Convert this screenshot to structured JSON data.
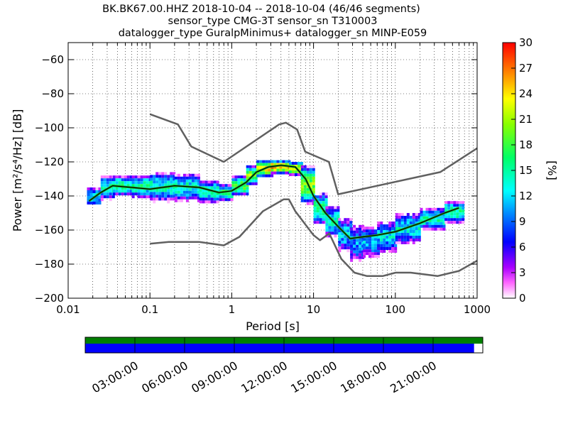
{
  "title": {
    "line1": "BK.BK67.00.HHZ   2018-10-04 -- 2018-10-04  (46/46 segments)",
    "line2": "sensor_type CMG-3T sensor_sn T310003",
    "line3": "datalogger_type GuralpMinimus+ datalogger_sn MINP-E059"
  },
  "colors": {
    "noise_model": "#606060",
    "mean_curve": "#000000",
    "mode_curve": "#22aa22",
    "coverage_top": "#007f00",
    "coverage_bottom": "#0000ff"
  },
  "chart_data": [
    {
      "type": "heatmap",
      "xlabel": "Period [s]",
      "ylabel": "Power [m²/s⁴/Hz] [dB]",
      "xscale": "log",
      "xlim": [
        0.01,
        1000
      ],
      "ylim": [
        -200,
        -50
      ],
      "x_ticks": [
        {
          "v": 0.01,
          "label": "0.01"
        },
        {
          "v": 0.1,
          "label": "0.1"
        },
        {
          "v": 1,
          "label": "1"
        },
        {
          "v": 10,
          "label": "10"
        },
        {
          "v": 100,
          "label": "100"
        },
        {
          "v": 1000,
          "label": "1000"
        }
      ],
      "y_ticks": [
        {
          "v": -60,
          "label": "−60"
        },
        {
          "v": -80,
          "label": "−80"
        },
        {
          "v": -100,
          "label": "−100"
        },
        {
          "v": -120,
          "label": "−120"
        },
        {
          "v": -140,
          "label": "−140"
        },
        {
          "v": -160,
          "label": "−160"
        },
        {
          "v": -180,
          "label": "−180"
        },
        {
          "v": -200,
          "label": "−200"
        }
      ],
      "grid": true,
      "colorbar": {
        "label": "[%]",
        "min": 0,
        "max": 30,
        "ticks": [
          {
            "v": 0,
            "label": "0"
          },
          {
            "v": 3,
            "label": "3"
          },
          {
            "v": 6,
            "label": "6"
          },
          {
            "v": 9,
            "label": "9"
          },
          {
            "v": 12,
            "label": "12"
          },
          {
            "v": 15,
            "label": "15"
          },
          {
            "v": 18,
            "label": "18"
          },
          {
            "v": 21,
            "label": "21"
          },
          {
            "v": 24,
            "label": "24"
          },
          {
            "v": 27,
            "label": "27"
          },
          {
            "v": 30,
            "label": "30"
          }
        ]
      },
      "noise_model_high": [
        [
          0.1,
          -92
        ],
        [
          0.22,
          -98
        ],
        [
          0.32,
          -111
        ],
        [
          0.8,
          -120
        ],
        [
          3.8,
          -98
        ],
        [
          4.6,
          -97
        ],
        [
          6.3,
          -101
        ],
        [
          7.9,
          -114
        ],
        [
          15.4,
          -120
        ],
        [
          20,
          -139
        ],
        [
          354,
          -126
        ],
        [
          1000,
          -112
        ]
      ],
      "noise_model_low": [
        [
          0.1,
          -168
        ],
        [
          0.17,
          -167
        ],
        [
          0.4,
          -167
        ],
        [
          0.8,
          -169
        ],
        [
          1.24,
          -164
        ],
        [
          2.4,
          -149
        ],
        [
          4.3,
          -142
        ],
        [
          5,
          -142
        ],
        [
          6,
          -149
        ],
        [
          10,
          -163
        ],
        [
          12,
          -166
        ],
        [
          15.6,
          -162
        ],
        [
          21.9,
          -177
        ],
        [
          31.6,
          -185
        ],
        [
          45,
          -187
        ],
        [
          70,
          -187
        ],
        [
          101,
          -185
        ],
        [
          154,
          -185
        ],
        [
          328,
          -187
        ],
        [
          600,
          -184
        ],
        [
          1000,
          -178
        ]
      ],
      "mode_curve": [
        [
          0.018,
          -143
        ],
        [
          0.025,
          -138
        ],
        [
          0.035,
          -134
        ],
        [
          0.06,
          -135
        ],
        [
          0.1,
          -136
        ],
        [
          0.2,
          -134
        ],
        [
          0.4,
          -135
        ],
        [
          0.7,
          -138
        ],
        [
          1.0,
          -137
        ],
        [
          1.5,
          -132
        ],
        [
          2.0,
          -126
        ],
        [
          2.8,
          -123
        ],
        [
          4,
          -122
        ],
        [
          6,
          -123
        ],
        [
          8,
          -130
        ],
        [
          10,
          -140
        ],
        [
          14,
          -150
        ],
        [
          20,
          -158
        ],
        [
          28,
          -165
        ],
        [
          40,
          -164
        ],
        [
          60,
          -163
        ],
        [
          100,
          -161
        ],
        [
          200,
          -156
        ],
        [
          400,
          -150
        ],
        [
          600,
          -147
        ]
      ],
      "density_samples": [
        [
          0.017,
          0.025,
          -146,
          -135,
          12
        ],
        [
          0.025,
          0.035,
          -142,
          -128,
          14
        ],
        [
          0.035,
          0.06,
          -140,
          -128,
          16
        ],
        [
          0.06,
          0.1,
          -141,
          -128,
          15
        ],
        [
          0.1,
          0.2,
          -143,
          -126,
          14
        ],
        [
          0.2,
          0.4,
          -143,
          -127,
          14
        ],
        [
          0.4,
          0.7,
          -144,
          -131,
          15
        ],
        [
          0.7,
          1.0,
          -143,
          -133,
          16
        ],
        [
          1.0,
          1.5,
          -140,
          -128,
          18
        ],
        [
          1.5,
          2.0,
          -134,
          -122,
          20
        ],
        [
          2.0,
          3.0,
          -129,
          -119,
          24
        ],
        [
          3.0,
          5.0,
          -127,
          -119,
          26
        ],
        [
          5.0,
          7.0,
          -128,
          -120,
          24
        ],
        [
          7.0,
          10,
          -145,
          -122,
          20
        ],
        [
          10,
          14,
          -157,
          -138,
          16
        ],
        [
          14,
          20,
          -164,
          -146,
          14
        ],
        [
          20,
          28,
          -172,
          -153,
          12
        ],
        [
          28,
          40,
          -178,
          -157,
          10
        ],
        [
          40,
          60,
          -176,
          -158,
          11
        ],
        [
          60,
          100,
          -173,
          -155,
          12
        ],
        [
          100,
          200,
          -168,
          -150,
          13
        ],
        [
          200,
          400,
          -160,
          -147,
          14
        ],
        [
          400,
          650,
          -156,
          -143,
          15
        ]
      ]
    },
    {
      "type": "timeline",
      "x_ticks": [
        "03:00:00",
        "06:00:00",
        "09:00:00",
        "12:00:00",
        "15:00:00",
        "18:00:00",
        "21:00:00"
      ],
      "coverage_top_fraction": 1.0,
      "coverage_bottom_fraction": 0.978
    }
  ]
}
